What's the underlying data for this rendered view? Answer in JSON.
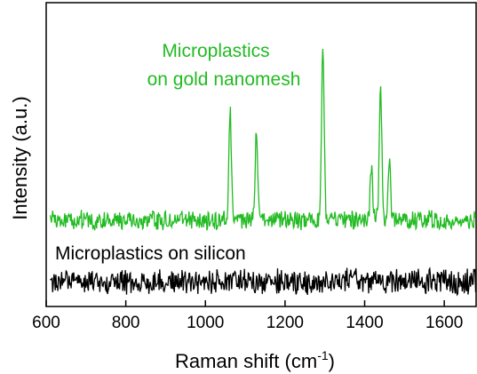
{
  "chart_data": {
    "type": "line",
    "title": "",
    "xlabel": "Raman shift (cm",
    "xlabel_sup": "-1",
    "xlabel_suffix": ")",
    "ylabel": "Intensity (a.u.)",
    "xlim": [
      600,
      1680
    ],
    "xticks": [
      600,
      800,
      1000,
      1200,
      1400,
      1600
    ],
    "xtick_labels": [
      "600",
      "800",
      "1000",
      "1200",
      "1400",
      "1600"
    ],
    "y_ticks_labeled": false,
    "grid": false,
    "series": [
      {
        "name": "Microplastics on gold nanomesh",
        "color": "#22bb22",
        "baseline": 248,
        "noise_amplitude": 12,
        "peaks": [
          {
            "x": 1062,
            "height": 122
          },
          {
            "x": 1128,
            "height": 98
          },
          {
            "x": 1295,
            "height": 200
          },
          {
            "x": 1417,
            "height": 58
          },
          {
            "x": 1440,
            "height": 152
          },
          {
            "x": 1462,
            "height": 66
          }
        ]
      },
      {
        "name": "Microplastics on silicon",
        "color": "#000000",
        "baseline": 317,
        "noise_amplitude": 16,
        "peaks": []
      }
    ],
    "annotations": [
      {
        "lines": [
          "Microplastics",
          "on gold nanomesh"
        ],
        "color": "#22bb22"
      },
      {
        "lines": [
          "Microplastics on silicon"
        ],
        "color": "#000000"
      }
    ]
  }
}
